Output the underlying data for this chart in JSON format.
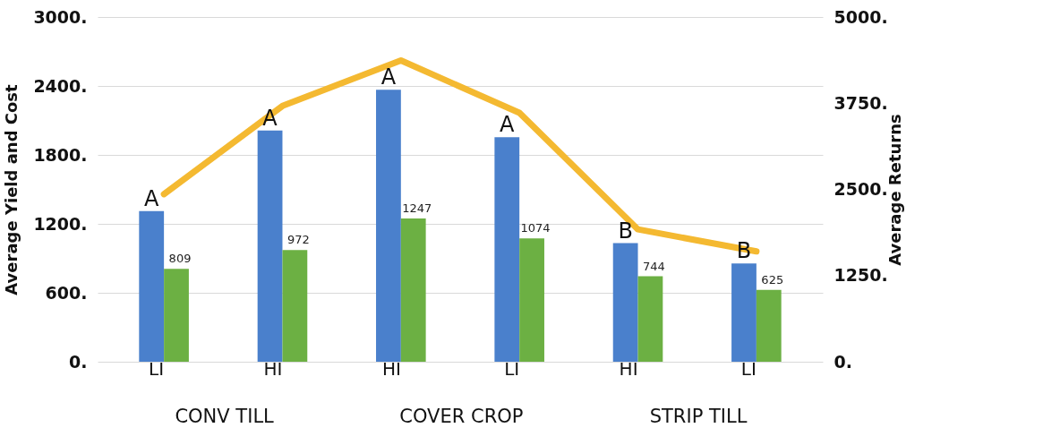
{
  "chart_data": {
    "type": "bar",
    "ylabel": "Average Yield and  Cost",
    "y2label": "Average Returns",
    "categories": [
      "LI",
      "HI",
      "HI",
      "LI",
      "HI",
      "LI"
    ],
    "series": [
      {
        "color": "#4a80cc",
        "values": [
          1312,
          2012,
          2366,
          1953,
          1032,
          855
        ],
        "value_labels": [
          "A",
          "A",
          "A",
          "A",
          "B",
          "B"
        ]
      },
      {
        "color": "#6cb043",
        "values": [
          809,
          972,
          1247,
          1074,
          744,
          625
        ],
        "value_labels": [
          "809",
          "972",
          "1247",
          "1074",
          "744",
          "625"
        ]
      },
      {
        "type": "line",
        "axis": "y2",
        "color": "#f4b931",
        "values": [
          2430,
          3710,
          4370,
          3610,
          1920,
          1600
        ]
      }
    ],
    "ylim": [
      0,
      3000
    ],
    "yticks": [
      {
        "value": 0,
        "label": "0."
      },
      {
        "value": 600,
        "label": "600."
      },
      {
        "value": 1200,
        "label": "1200."
      },
      {
        "value": 1800,
        "label": "1800."
      },
      {
        "value": 2400,
        "label": "2400."
      },
      {
        "value": 3000,
        "label": "3000."
      }
    ],
    "y2lim": [
      0,
      5000
    ],
    "y2ticks": [
      {
        "value": 0,
        "label": "0."
      },
      {
        "value": 1250,
        "label": "1250."
      },
      {
        "value": 2500,
        "label": "2500."
      },
      {
        "value": 3750,
        "label": "3750."
      },
      {
        "value": 5000,
        "label": "5000."
      }
    ],
    "grid": "y",
    "annotations": [
      "CONV TILL",
      "COVER CROP",
      "STRIP TILL"
    ]
  }
}
